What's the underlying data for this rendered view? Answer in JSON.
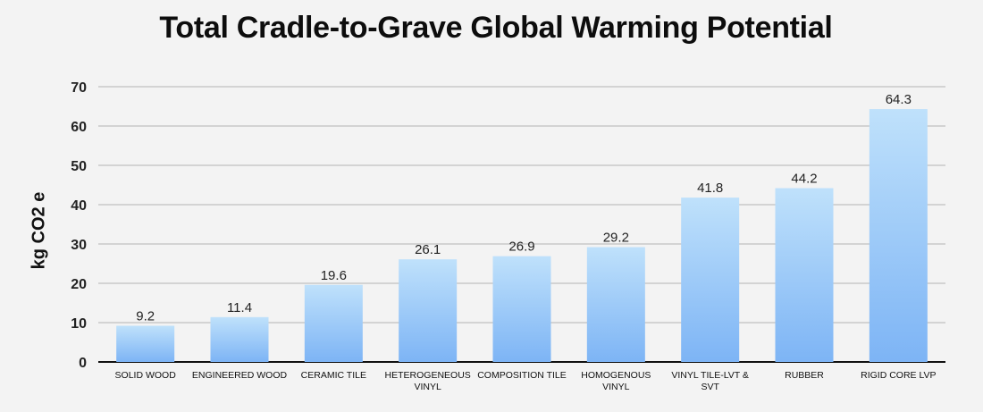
{
  "chart_data": {
    "type": "bar",
    "title": "Total Cradle-to-Grave Global Warming Potential",
    "xlabel": "",
    "ylabel": "kg CO2 e",
    "ylim": [
      0,
      70
    ],
    "yticks": [
      0,
      10,
      20,
      30,
      40,
      50,
      60,
      70
    ],
    "grid": true,
    "categories": [
      [
        "SOLID WOOD"
      ],
      [
        "ENGINEERED WOOD"
      ],
      [
        "CERAMIC TILE"
      ],
      [
        "HETEROGENEOUS",
        "VINYL"
      ],
      [
        "COMPOSITION TILE"
      ],
      [
        "HOMOGENOUS",
        "VINYL"
      ],
      [
        "VINYL TILE-LVT &",
        "SVT"
      ],
      [
        "RUBBER"
      ],
      [
        "RIGID CORE LVP"
      ]
    ],
    "values": [
      9.2,
      11.4,
      19.6,
      26.1,
      26.9,
      29.2,
      41.8,
      44.2,
      64.3
    ],
    "colors": {
      "bar_top": "#bfe1fb",
      "bar_bottom": "#7db4f5",
      "grid": "#d3d3d3",
      "axis": "#111111"
    }
  }
}
